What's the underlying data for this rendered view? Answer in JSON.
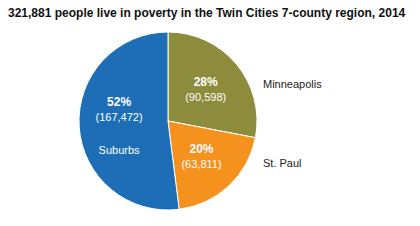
{
  "chart_data": {
    "type": "pie",
    "title": "321,881 people live in poverty in the Twin Cities 7-county region, 2014",
    "categories": [
      "Minneapolis",
      "St. Paul",
      "Suburbs"
    ],
    "values": [
      28,
      20,
      52
    ],
    "value_labels": [
      "28%",
      "20%",
      "52%"
    ],
    "count_labels": [
      "(90,598)",
      "(63,811)",
      "(167,472)"
    ],
    "colors": [
      "#8c8c3c",
      "#f5921e",
      "#1d6eb6"
    ],
    "data_labels": true
  }
}
